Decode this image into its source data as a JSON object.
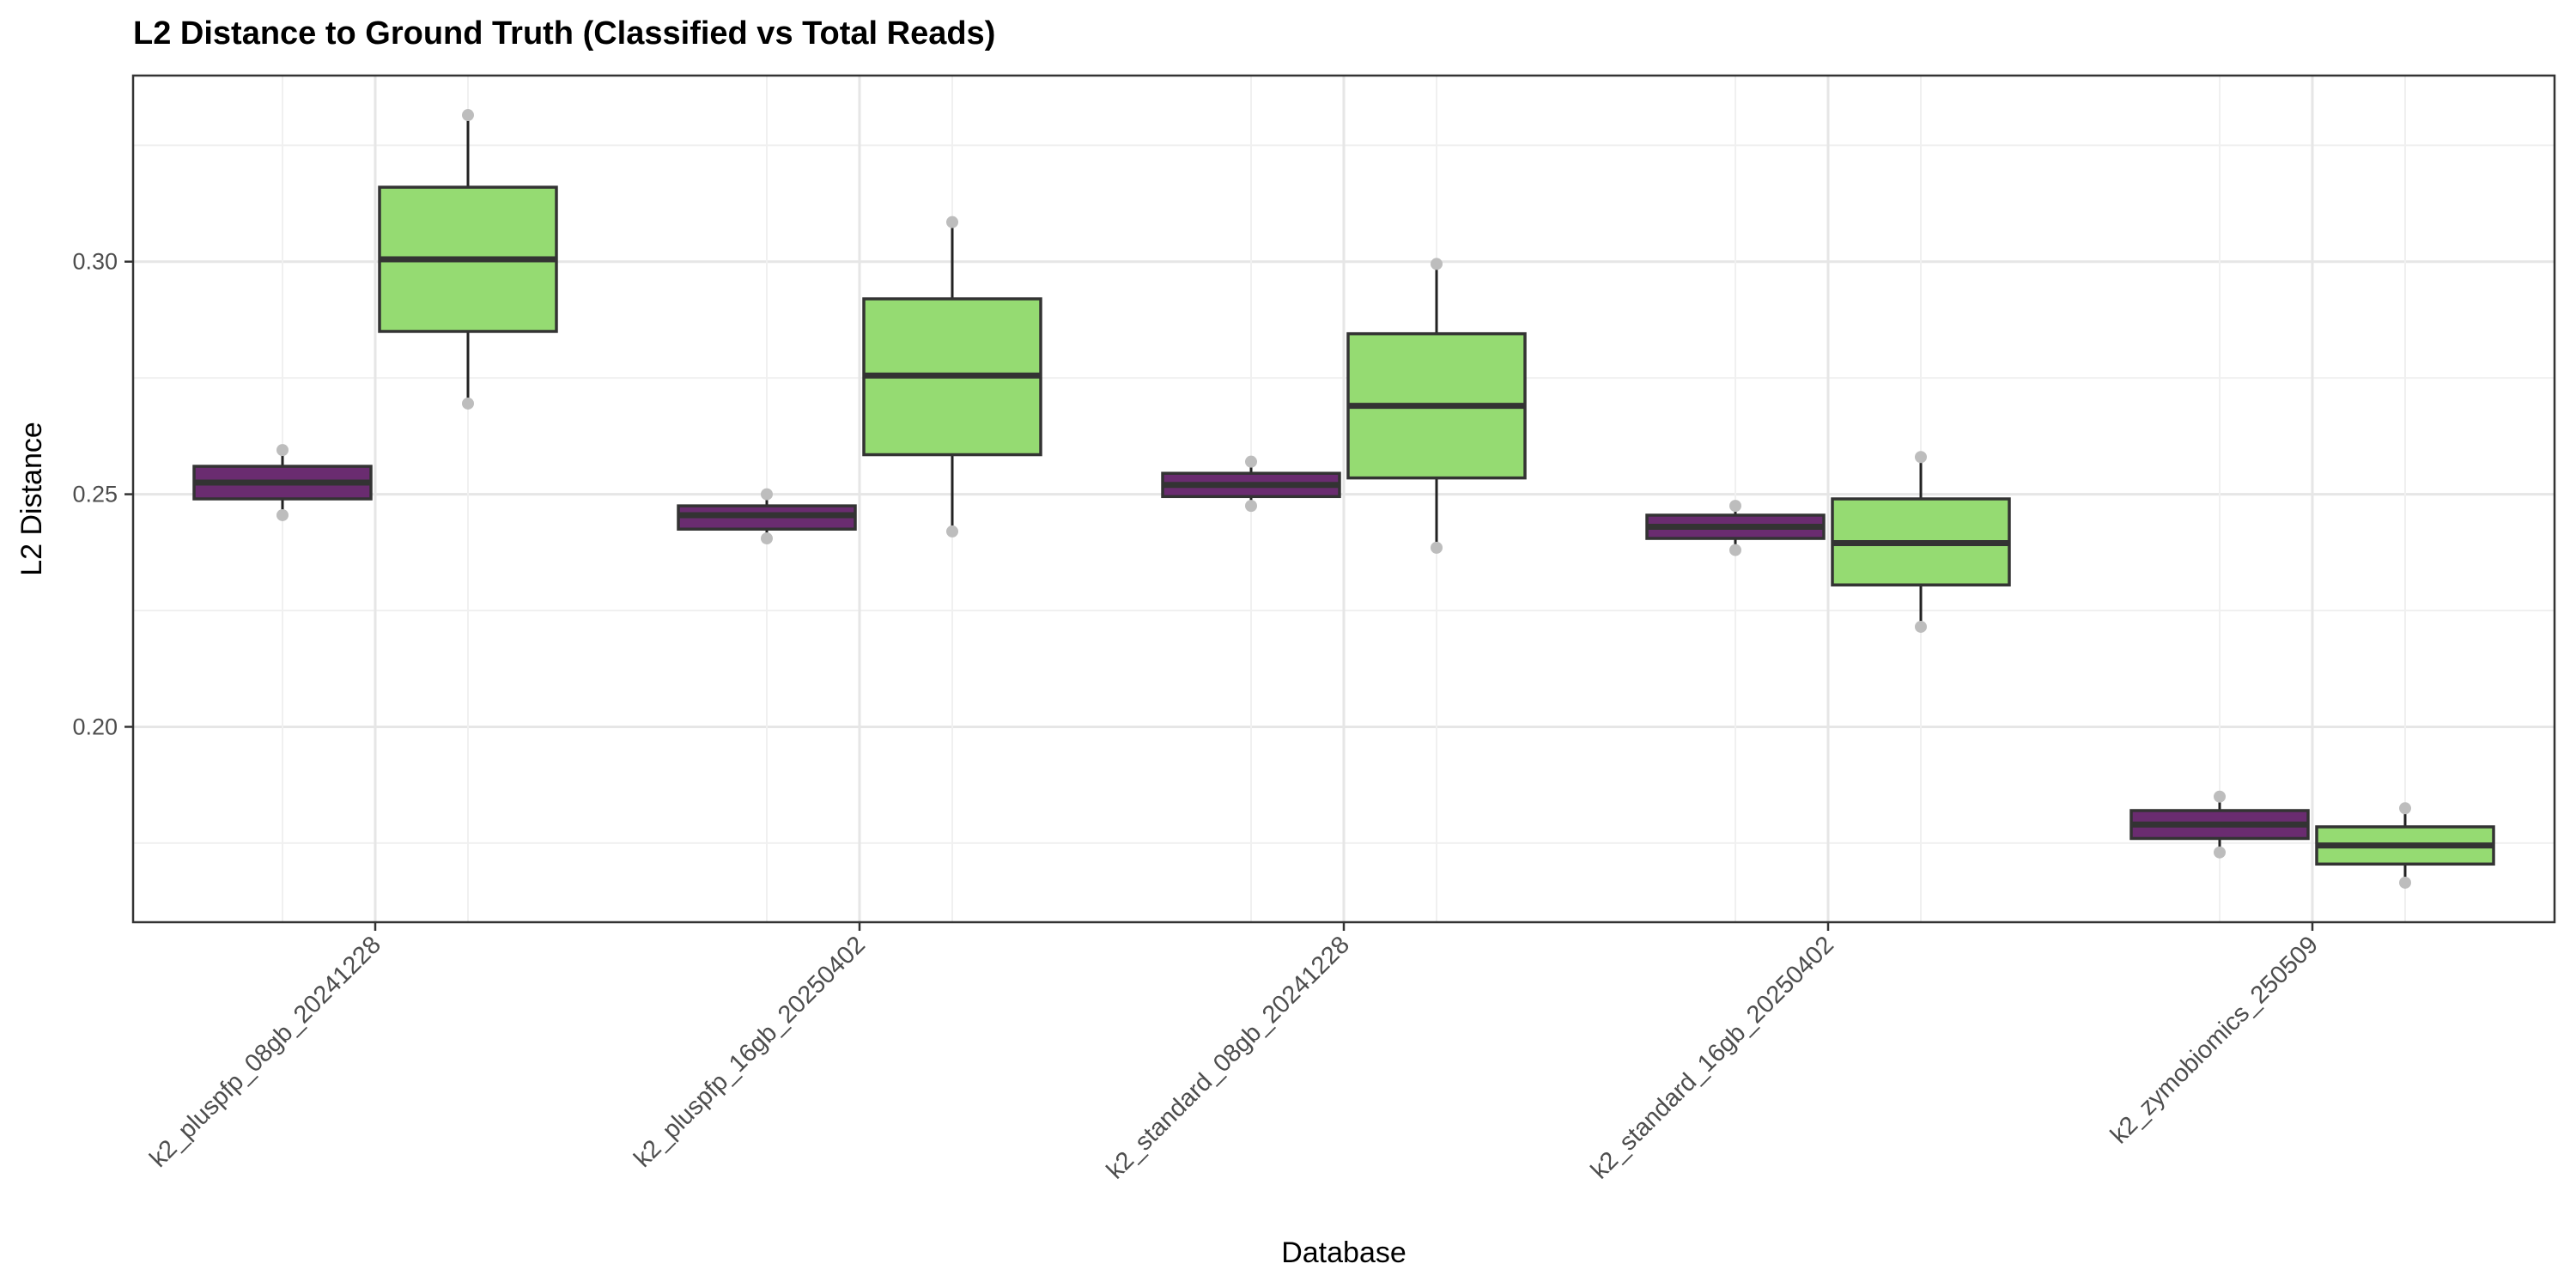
{
  "chart_data": {
    "type": "box",
    "title": "L2 Distance to Ground Truth (Classified vs Total Reads)",
    "xlabel": "Database",
    "ylabel": "L2 Distance",
    "ylim": [
      0.158,
      0.34
    ],
    "yticks": [
      "0.20",
      "0.25",
      "0.30"
    ],
    "grid": true,
    "legend": "none",
    "categories": [
      "k2_pluspfp_08gb_20241228",
      "k2_pluspfp_16gb_20250402",
      "k2_standard_08gb_20241228",
      "k2_standard_16gb_20250402",
      "k2_zymobiomics_250509"
    ],
    "series": [
      {
        "color": "#6a2c70",
        "boxes": [
          {
            "min": 0.2455,
            "q1": 0.249,
            "median": 0.2525,
            "q3": 0.256,
            "max": 0.2595
          },
          {
            "min": 0.2405,
            "q1": 0.2425,
            "median": 0.2455,
            "q3": 0.2475,
            "max": 0.25
          },
          {
            "min": 0.2475,
            "q1": 0.2495,
            "median": 0.252,
            "q3": 0.2545,
            "max": 0.257
          },
          {
            "min": 0.238,
            "q1": 0.2405,
            "median": 0.243,
            "q3": 0.2455,
            "max": 0.2475
          },
          {
            "min": 0.173,
            "q1": 0.176,
            "median": 0.179,
            "q3": 0.182,
            "max": 0.185
          }
        ]
      },
      {
        "color": "#95db72",
        "boxes": [
          {
            "min": 0.2695,
            "q1": 0.285,
            "median": 0.3005,
            "q3": 0.316,
            "max": 0.3315
          },
          {
            "min": 0.242,
            "q1": 0.2585,
            "median": 0.2755,
            "q3": 0.292,
            "max": 0.3085
          },
          {
            "min": 0.2385,
            "q1": 0.2535,
            "median": 0.269,
            "q3": 0.2845,
            "max": 0.2995
          },
          {
            "min": 0.2215,
            "q1": 0.2305,
            "median": 0.2395,
            "q3": 0.249,
            "max": 0.258
          },
          {
            "min": 0.1665,
            "q1": 0.1705,
            "median": 0.1745,
            "q3": 0.1785,
            "max": 0.1825
          }
        ]
      }
    ]
  }
}
